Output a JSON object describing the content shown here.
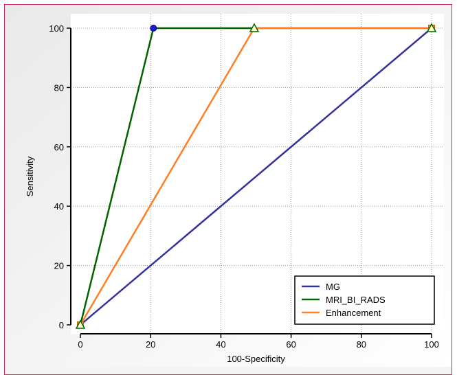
{
  "chart_data": {
    "type": "line",
    "xlabel": "100-Specificity",
    "ylabel": "Sensitivity",
    "xlim": [
      0,
      100
    ],
    "ylim": [
      0,
      100
    ],
    "x_ticks": [
      0,
      20,
      40,
      60,
      80,
      100
    ],
    "y_ticks": [
      0,
      20,
      40,
      60,
      80,
      100
    ],
    "grid": true,
    "legend_position": "bottom-right",
    "series": [
      {
        "name": "MG",
        "color": "#333399",
        "marker": "none",
        "x": [
          0,
          100
        ],
        "y": [
          0,
          100
        ]
      },
      {
        "name": "MRI_BI_RADS",
        "color": "#006400",
        "marker": "circle",
        "x": [
          0,
          20.8,
          49.5,
          100
        ],
        "y": [
          0,
          100,
          100,
          100
        ]
      },
      {
        "name": "Enhancement",
        "color": "#ff7f24",
        "marker": "triangle",
        "x": [
          0,
          49.5,
          100
        ],
        "y": [
          0,
          100,
          100
        ]
      }
    ]
  }
}
